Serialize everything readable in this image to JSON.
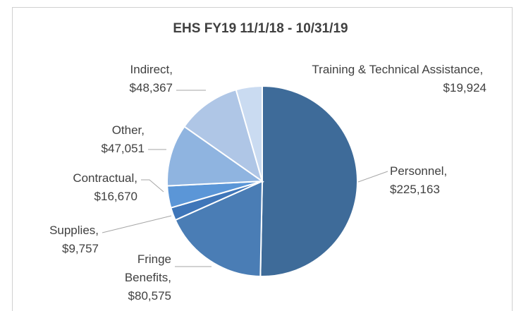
{
  "chart_data": {
    "type": "pie",
    "title": "EHS FY19 11/1/18 - 10/31/19",
    "categories": [
      "Personnel,",
      "Fringe Benefits,",
      "Supplies,",
      "Contractual,",
      "Other,",
      "Indirect,",
      "Training & Technical Assistance,"
    ],
    "values": [
      225163,
      80575,
      9757,
      16670,
      47051,
      48367,
      19924
    ],
    "value_labels": [
      "$225,163",
      "$80,575",
      "$9,757",
      "$16,670",
      "$47,051",
      "$48,367",
      "$19,924"
    ],
    "colors": [
      "#3e6b99",
      "#4a7db5",
      "#3f76b9",
      "#5b96d7",
      "#8fb4e0",
      "#afc6e6",
      "#cadbf1"
    ]
  }
}
